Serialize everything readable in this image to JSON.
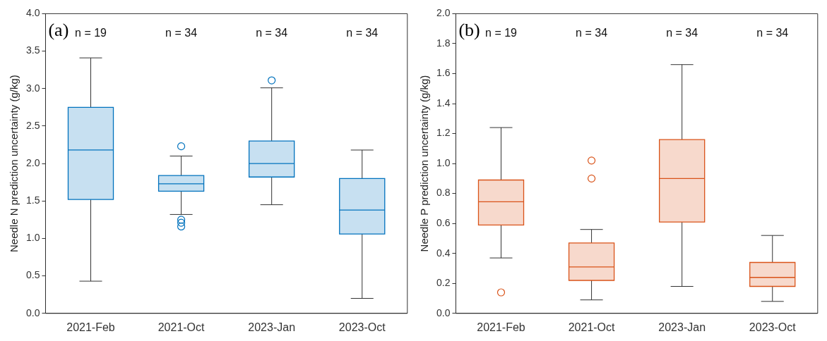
{
  "chart_data": [
    {
      "type": "box",
      "ylabel": "Needle N prediction uncertainty (g/kg)",
      "categories": [
        "2021-Feb",
        "2021-Oct",
        "2023-Jan",
        "2023-Oct"
      ],
      "ylim": [
        0,
        4
      ],
      "yticks": [
        {
          "value": 0,
          "label": "0.0"
        },
        {
          "value": 0.5,
          "label": "0.5"
        },
        {
          "value": 1,
          "label": "1.0"
        },
        {
          "value": 1.5,
          "label": "1.5"
        },
        {
          "value": 2,
          "label": "2.0"
        },
        {
          "value": 2.5,
          "label": "2.5"
        },
        {
          "value": 3,
          "label": "3.0"
        },
        {
          "value": 3.5,
          "label": "3.5"
        },
        {
          "value": 4,
          "label": "4.0"
        }
      ],
      "annotations": [
        "(a)",
        "n = 19",
        "n = 34",
        "n = 34",
        "n = 34"
      ],
      "series": [
        {
          "color": "#0072bd",
          "boxes": [
            {
              "low": 0.43,
              "q1": 1.52,
              "median": 2.18,
              "q3": 2.75,
              "high": 3.41
            },
            {
              "low": 1.32,
              "q1": 1.63,
              "median": 1.73,
              "q3": 1.84,
              "high": 2.1,
              "outliers": [
                2.23,
                1.25,
                1.21,
                1.16
              ]
            },
            {
              "low": 1.45,
              "q1": 1.82,
              "median": 2.0,
              "q3": 2.3,
              "high": 3.01,
              "outliers": [
                3.11
              ]
            },
            {
              "low": 0.2,
              "q1": 1.06,
              "median": 1.38,
              "q3": 1.8,
              "high": 2.18
            }
          ]
        }
      ]
    },
    {
      "type": "box",
      "ylabel": "Needle P prediction uncertainty (g/kg)",
      "categories": [
        "2021-Feb",
        "2021-Oct",
        "2023-Jan",
        "2023-Oct"
      ],
      "ylim": [
        0,
        2
      ],
      "yticks": [
        {
          "value": 0,
          "label": "0.0"
        },
        {
          "value": 0.2,
          "label": "0.2"
        },
        {
          "value": 0.4,
          "label": "0.4"
        },
        {
          "value": 0.6,
          "label": "0.6"
        },
        {
          "value": 0.8,
          "label": "0.8"
        },
        {
          "value": 1,
          "label": "1.0"
        },
        {
          "value": 1.2,
          "label": "1.2"
        },
        {
          "value": 1.4,
          "label": "1.4"
        },
        {
          "value": 1.6,
          "label": "1.6"
        },
        {
          "value": 1.8,
          "label": "1.8"
        },
        {
          "value": 2,
          "label": "2.0"
        }
      ],
      "annotations": [
        "(b)",
        "n = 19",
        "n = 34",
        "n = 34",
        "n = 34"
      ],
      "series": [
        {
          "color": "#d95319",
          "boxes": [
            {
              "low": 0.37,
              "q1": 0.59,
              "median": 0.745,
              "q3": 0.89,
              "high": 1.24,
              "outliers": [
                0.14
              ]
            },
            {
              "low": 0.09,
              "q1": 0.22,
              "median": 0.31,
              "q3": 0.47,
              "high": 0.56,
              "outliers": [
                1.02,
                0.9
              ]
            },
            {
              "low": 0.18,
              "q1": 0.61,
              "median": 0.9,
              "q3": 1.16,
              "high": 1.66
            },
            {
              "low": 0.08,
              "q1": 0.18,
              "median": 0.24,
              "q3": 0.34,
              "high": 0.52
            }
          ]
        }
      ]
    }
  ]
}
